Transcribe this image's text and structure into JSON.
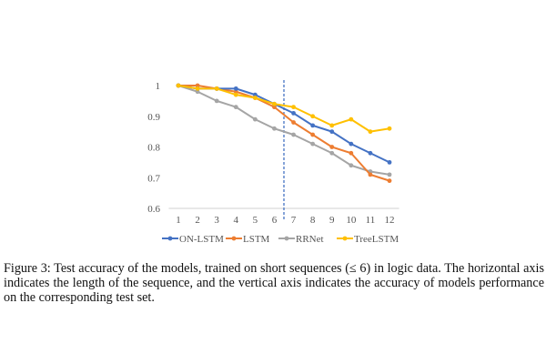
{
  "chart_data": {
    "type": "line",
    "title": "",
    "xlabel": "",
    "ylabel": "",
    "x": [
      1,
      2,
      3,
      4,
      5,
      6,
      7,
      8,
      9,
      10,
      11,
      12
    ],
    "x_tick_labels": [
      "1",
      "2",
      "3",
      "4",
      "5",
      "6",
      "7",
      "8",
      "9",
      "10",
      "11",
      "12"
    ],
    "ylim": [
      0.6,
      1.0
    ],
    "y_ticks": [
      0.6,
      0.7,
      0.8,
      0.9,
      1.0
    ],
    "y_tick_labels": [
      "0.6",
      "0.7",
      "0.8",
      "0.9",
      "1"
    ],
    "grid": false,
    "legend_position": "bottom",
    "threshold_line": {
      "x": 6.5,
      "style": "dashed",
      "color": "#4472C4"
    },
    "series": [
      {
        "name": "ON-LSTM",
        "color": "#4472C4",
        "values": [
          1.0,
          0.99,
          0.99,
          0.99,
          0.97,
          0.94,
          0.91,
          0.87,
          0.85,
          0.81,
          0.78,
          0.75
        ]
      },
      {
        "name": "LSTM",
        "color": "#ED7D31",
        "values": [
          1.0,
          1.0,
          0.99,
          0.98,
          0.96,
          0.93,
          0.88,
          0.84,
          0.8,
          0.78,
          0.71,
          0.69
        ]
      },
      {
        "name": "RRNet",
        "color": "#A5A5A5",
        "values": [
          1.0,
          0.98,
          0.95,
          0.93,
          0.89,
          0.86,
          0.84,
          0.81,
          0.78,
          0.74,
          0.72,
          0.71
        ]
      },
      {
        "name": "TreeLSTM",
        "color": "#FFC000",
        "values": [
          1.0,
          0.99,
          0.99,
          0.97,
          0.96,
          0.94,
          0.93,
          0.9,
          0.87,
          0.89,
          0.85,
          0.86
        ]
      }
    ]
  },
  "caption": {
    "text": "Figure 3: Test accuracy of the models, trained on short sequences (≤ 6) in logic data. The horizontal axis indicates the length of the sequence, and the vertical axis indicates the accuracy of models performance on the corresponding test set."
  }
}
